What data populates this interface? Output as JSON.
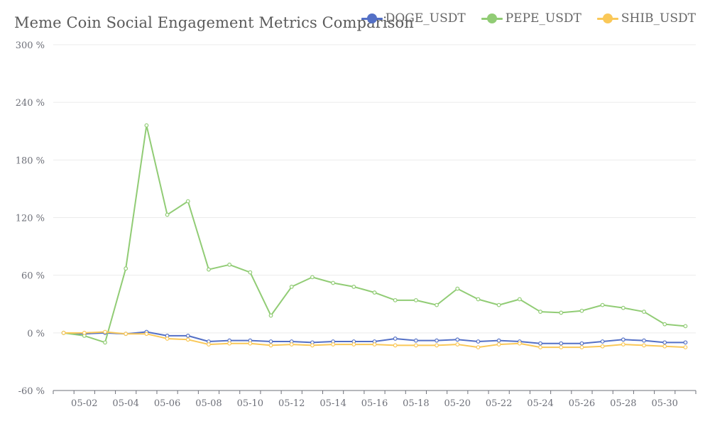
{
  "chart_data": {
    "type": "line",
    "title": "Meme Coin Social Engagement Metrics Comparison",
    "x": [
      "05-01",
      "05-02",
      "05-03",
      "05-04",
      "05-05",
      "05-06",
      "05-07",
      "05-08",
      "05-09",
      "05-10",
      "05-11",
      "05-12",
      "05-13",
      "05-14",
      "05-15",
      "05-16",
      "05-17",
      "05-18",
      "05-19",
      "05-20",
      "05-21",
      "05-22",
      "05-23",
      "05-24",
      "05-25",
      "05-26",
      "05-27",
      "05-28",
      "05-29",
      "05-30",
      "05-31"
    ],
    "x_tick_labels": [
      "05-02",
      "05-04",
      "05-06",
      "05-08",
      "05-10",
      "05-12",
      "05-14",
      "05-16",
      "05-18",
      "05-20",
      "05-22",
      "05-24",
      "05-26",
      "05-28",
      "05-30"
    ],
    "y_tick_labels": [
      "-60 %",
      "0 %",
      "60 %",
      "120 %",
      "180 %",
      "240 %",
      "300 %"
    ],
    "y_ticks": [
      -60,
      0,
      60,
      120,
      180,
      240,
      300
    ],
    "ylim": [
      -60,
      300
    ],
    "grid": true,
    "legend_position": "top-right",
    "series": [
      {
        "name": "DOGE_USDT",
        "color": "#5470c6",
        "values": [
          0,
          -1,
          0,
          -1,
          1,
          -3,
          -3,
          -9,
          -8,
          -8,
          -9,
          -9,
          -10,
          -9,
          -9,
          -9,
          -6,
          -8,
          -8,
          -7,
          -9,
          -8,
          -9,
          -11,
          -11,
          -11,
          -9,
          -7,
          -8,
          -10,
          -10
        ]
      },
      {
        "name": "PEPE_USDT",
        "color": "#91cc75",
        "values": [
          0,
          -3,
          -10,
          67,
          216,
          123,
          137,
          66,
          71,
          63,
          18,
          48,
          58,
          52,
          48,
          42,
          34,
          34,
          29,
          46,
          35,
          29,
          35,
          22,
          21,
          23,
          29,
          26,
          22,
          9,
          7
        ]
      },
      {
        "name": "SHIB_USDT",
        "color": "#fac858",
        "values": [
          0,
          0,
          1,
          -1,
          -1,
          -6,
          -7,
          -12,
          -11,
          -11,
          -13,
          -12,
          -13,
          -12,
          -12,
          -12,
          -13,
          -13,
          -13,
          -12,
          -15,
          -12,
          -11,
          -15,
          -15,
          -15,
          -14,
          -12,
          -13,
          -14,
          -15
        ]
      }
    ]
  }
}
